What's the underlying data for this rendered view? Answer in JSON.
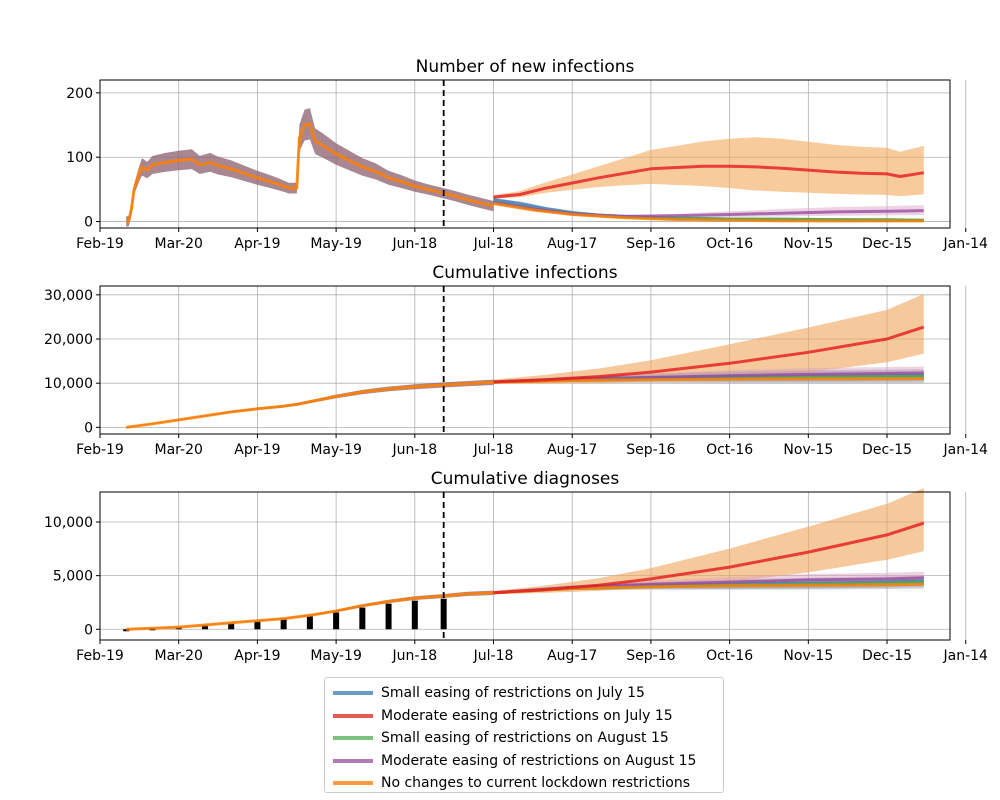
{
  "chart_data": [
    {
      "type": "line",
      "title": "Number of new infections",
      "xlabel": "",
      "ylabel": "",
      "x_ticks": [
        "Feb-19",
        "Mar-20",
        "Apr-19",
        "May-19",
        "Jun-18",
        "Jul-18",
        "Aug-17",
        "Sep-16",
        "Oct-16",
        "Nov-15",
        "Dec-15",
        "Jan-14"
      ],
      "y_ticks": [
        "0",
        "100",
        "200"
      ],
      "ylim": [
        -10,
        220
      ],
      "grid": true,
      "intervention_day": 131,
      "history": [
        [
          10,
          0
        ],
        [
          11,
          1
        ],
        [
          12,
          20
        ],
        [
          13,
          50
        ],
        [
          15,
          75
        ],
        [
          16,
          85
        ],
        [
          18,
          80
        ],
        [
          20,
          88
        ],
        [
          25,
          92
        ],
        [
          30,
          95
        ],
        [
          35,
          97
        ],
        [
          38,
          88
        ],
        [
          42,
          92
        ],
        [
          45,
          87
        ],
        [
          50,
          82
        ],
        [
          55,
          75
        ],
        [
          60,
          68
        ],
        [
          65,
          62
        ],
        [
          68,
          58
        ],
        [
          70,
          55
        ],
        [
          72,
          52
        ],
        [
          75,
          52
        ],
        [
          76,
          130
        ],
        [
          78,
          150
        ],
        [
          80,
          152
        ],
        [
          82,
          125
        ],
        [
          85,
          118
        ],
        [
          90,
          105
        ],
        [
          95,
          95
        ],
        [
          100,
          85
        ],
        [
          105,
          78
        ],
        [
          110,
          68
        ],
        [
          115,
          62
        ],
        [
          120,
          55
        ],
        [
          125,
          50
        ],
        [
          130,
          45
        ],
        [
          135,
          40
        ],
        [
          140,
          34
        ],
        [
          145,
          29
        ],
        [
          150,
          24
        ]
      ],
      "series": [
        {
          "name": "Small easing of restrictions on July 15",
          "color": "#377eb8",
          "points": [
            [
              150,
              34
            ],
            [
              160,
              28
            ],
            [
              170,
              20
            ],
            [
              180,
              14
            ],
            [
              190,
              10
            ],
            [
              200,
              8
            ],
            [
              220,
              5
            ],
            [
              240,
              4
            ],
            [
              260,
              3
            ],
            [
              280,
              3
            ],
            [
              300,
              2
            ],
            [
              314,
              2
            ]
          ]
        },
        {
          "name": "Moderate easing of restrictions on July 15",
          "color": "#e41a1c",
          "points": [
            [
              150,
              38
            ],
            [
              160,
              42
            ],
            [
              170,
              52
            ],
            [
              180,
              60
            ],
            [
              190,
              68
            ],
            [
              200,
              75
            ],
            [
              210,
              82
            ],
            [
              220,
              84
            ],
            [
              230,
              86
            ],
            [
              240,
              86
            ],
            [
              250,
              85
            ],
            [
              260,
              83
            ],
            [
              270,
              80
            ],
            [
              280,
              77
            ],
            [
              290,
              75
            ],
            [
              300,
              74
            ],
            [
              305,
              70
            ],
            [
              314,
              76
            ]
          ]
        },
        {
          "name": "Small easing of restrictions on August 15",
          "color": "#4daf4a",
          "points": [
            [
              150,
              30
            ],
            [
              165,
              20
            ],
            [
              180,
              12
            ],
            [
              200,
              7
            ],
            [
              220,
              5
            ],
            [
              240,
              4
            ],
            [
              260,
              4
            ],
            [
              280,
              3
            ],
            [
              300,
              3
            ],
            [
              314,
              2
            ]
          ]
        },
        {
          "name": "Moderate easing of restrictions on August 15",
          "color": "#984ea3",
          "points": [
            [
              150,
              30
            ],
            [
              165,
              20
            ],
            [
              180,
              12
            ],
            [
              200,
              8
            ],
            [
              220,
              9
            ],
            [
              240,
              11
            ],
            [
              260,
              13
            ],
            [
              280,
              15
            ],
            [
              300,
              16
            ],
            [
              314,
              17
            ]
          ]
        },
        {
          "name": "No changes to current lockdown restrictions",
          "color": "#ff7f00",
          "points": [
            [
              150,
              28
            ],
            [
              165,
              18
            ],
            [
              180,
              11
            ],
            [
              200,
              6
            ],
            [
              220,
              3
            ],
            [
              240,
              2
            ],
            [
              260,
              1
            ],
            [
              280,
              1
            ],
            [
              300,
              1
            ],
            [
              314,
              1
            ]
          ]
        }
      ]
    },
    {
      "type": "line",
      "title": "Cumulative infections",
      "xlabel": "",
      "ylabel": "",
      "x_ticks": [
        "Feb-19",
        "Mar-20",
        "Apr-19",
        "May-19",
        "Jun-18",
        "Jul-18",
        "Aug-17",
        "Sep-16",
        "Oct-16",
        "Nov-15",
        "Dec-15",
        "Jan-14"
      ],
      "y_ticks": [
        "0",
        "10,000",
        "20,000",
        "30,000"
      ],
      "ylim": [
        -1500,
        32000
      ],
      "grid": true,
      "intervention_day": 131,
      "history": [
        [
          10,
          0
        ],
        [
          20,
          800
        ],
        [
          30,
          1700
        ],
        [
          40,
          2600
        ],
        [
          50,
          3500
        ],
        [
          60,
          4200
        ],
        [
          70,
          4800
        ],
        [
          75,
          5200
        ],
        [
          80,
          5800
        ],
        [
          90,
          7000
        ],
        [
          100,
          8000
        ],
        [
          110,
          8700
        ],
        [
          120,
          9200
        ],
        [
          131,
          9600
        ],
        [
          140,
          9900
        ],
        [
          150,
          10200
        ]
      ],
      "series": [
        {
          "name": "Small easing of restrictions on July 15",
          "color": "#377eb8",
          "points": [
            [
              150,
              10300
            ],
            [
              180,
              11000
            ],
            [
              210,
              11300
            ],
            [
              240,
              11500
            ],
            [
              270,
              11600
            ],
            [
              300,
              11700
            ],
            [
              314,
              11800
            ]
          ]
        },
        {
          "name": "Moderate easing of restrictions on July 15",
          "color": "#e41a1c",
          "points": [
            [
              150,
              10300
            ],
            [
              170,
              10800
            ],
            [
              190,
              11500
            ],
            [
              210,
              12500
            ],
            [
              240,
              14500
            ],
            [
              270,
              17000
            ],
            [
              300,
              20000
            ],
            [
              314,
              22700
            ]
          ]
        },
        {
          "name": "Small easing of restrictions on August 15",
          "color": "#4daf4a",
          "points": [
            [
              150,
              10200
            ],
            [
              180,
              10800
            ],
            [
              210,
              11100
            ],
            [
              240,
              11300
            ],
            [
              270,
              11400
            ],
            [
              300,
              11500
            ],
            [
              314,
              11500
            ]
          ]
        },
        {
          "name": "Moderate easing of restrictions on August 15",
          "color": "#984ea3",
          "points": [
            [
              150,
              10200
            ],
            [
              180,
              10900
            ],
            [
              210,
              11300
            ],
            [
              240,
              11700
            ],
            [
              270,
              12000
            ],
            [
              300,
              12200
            ],
            [
              314,
              12300
            ]
          ]
        },
        {
          "name": "No changes to current lockdown restrictions",
          "color": "#ff7f00",
          "points": [
            [
              150,
              10200
            ],
            [
              180,
              10600
            ],
            [
              210,
              10800
            ],
            [
              240,
              10900
            ],
            [
              270,
              11000
            ],
            [
              300,
              11000
            ],
            [
              314,
              11000
            ]
          ]
        }
      ]
    },
    {
      "type": "line",
      "title": "Cumulative diagnoses",
      "xlabel": "",
      "ylabel": "",
      "x_ticks": [
        "Feb-19",
        "Mar-20",
        "Apr-19",
        "May-19",
        "Jun-18",
        "Jul-18",
        "Aug-17",
        "Sep-16",
        "Oct-16",
        "Nov-15",
        "Dec-15",
        "Jan-14"
      ],
      "y_ticks": [
        "0",
        "5,000",
        "10,000"
      ],
      "ylim": [
        -1000,
        12800
      ],
      "grid": true,
      "intervention_day": 131,
      "history": [
        [
          10,
          0
        ],
        [
          20,
          100
        ],
        [
          30,
          200
        ],
        [
          40,
          400
        ],
        [
          50,
          600
        ],
        [
          60,
          800
        ],
        [
          70,
          1000
        ],
        [
          80,
          1300
        ],
        [
          90,
          1700
        ],
        [
          100,
          2200
        ],
        [
          110,
          2600
        ],
        [
          120,
          2900
        ],
        [
          131,
          3100
        ],
        [
          140,
          3300
        ],
        [
          150,
          3400
        ]
      ],
      "series": [
        {
          "name": "Small easing of restrictions on July 15",
          "color": "#377eb8",
          "points": [
            [
              150,
              3400
            ],
            [
              180,
              3900
            ],
            [
              210,
              4100
            ],
            [
              240,
              4200
            ],
            [
              270,
              4300
            ],
            [
              300,
              4400
            ],
            [
              314,
              4500
            ]
          ]
        },
        {
          "name": "Moderate easing of restrictions on July 15",
          "color": "#e41a1c",
          "points": [
            [
              150,
              3400
            ],
            [
              170,
              3700
            ],
            [
              190,
              4100
            ],
            [
              210,
              4700
            ],
            [
              240,
              5800
            ],
            [
              270,
              7200
            ],
            [
              300,
              8800
            ],
            [
              314,
              9900
            ]
          ]
        },
        {
          "name": "Small easing of restrictions on August 15",
          "color": "#4daf4a",
          "points": [
            [
              150,
              3400
            ],
            [
              180,
              3800
            ],
            [
              210,
              4000
            ],
            [
              240,
              4100
            ],
            [
              270,
              4200
            ],
            [
              300,
              4300
            ],
            [
              314,
              4400
            ]
          ]
        },
        {
          "name": "Moderate easing of restrictions on August 15",
          "color": "#984ea3",
          "points": [
            [
              150,
              3400
            ],
            [
              180,
              3900
            ],
            [
              210,
              4200
            ],
            [
              240,
              4400
            ],
            [
              270,
              4600
            ],
            [
              300,
              4700
            ],
            [
              314,
              4800
            ]
          ]
        },
        {
          "name": "No changes to current lockdown restrictions",
          "color": "#ff7f00",
          "points": [
            [
              150,
              3400
            ],
            [
              180,
              3800
            ],
            [
              210,
              3950
            ],
            [
              240,
              4050
            ],
            [
              270,
              4100
            ],
            [
              300,
              4150
            ],
            [
              314,
              4200
            ]
          ]
        }
      ]
    }
  ],
  "legend": {
    "placement": "bottom-center",
    "items": [
      {
        "label": "Small easing of restrictions on July 15",
        "color": "#377eb8"
      },
      {
        "label": "Moderate easing of restrictions on July 15",
        "color": "#e41a1c"
      },
      {
        "label": "Small easing of restrictions on August 15",
        "color": "#4daf4a"
      },
      {
        "label": "Moderate easing of restrictions on August 15",
        "color": "#984ea3"
      },
      {
        "label": "No changes to current lockdown restrictions",
        "color": "#ff7f00"
      }
    ]
  }
}
